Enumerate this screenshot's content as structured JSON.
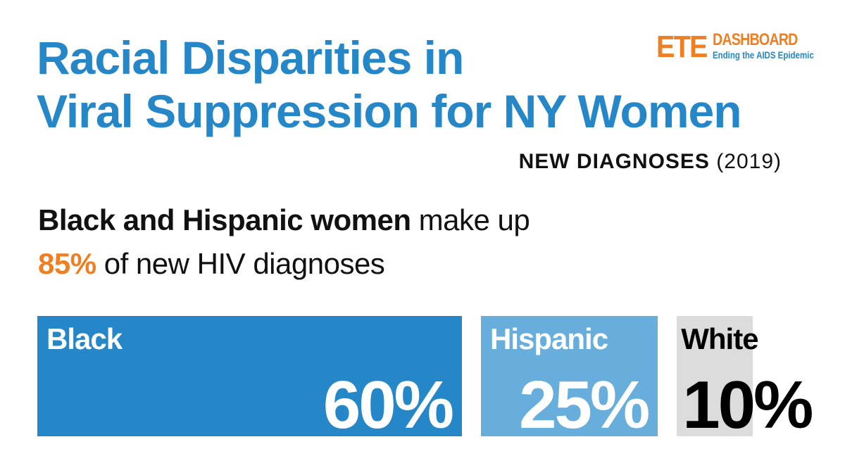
{
  "header": {
    "title_line1": "Racial Disparities in",
    "title_line2": "Viral Suppression for NY Women",
    "subtitle_main": "NEW DIAGNOSES",
    "subtitle_year": "(2019)"
  },
  "logo": {
    "ete": "ETE",
    "dashboard": "DASHBOARD",
    "tagline": "Ending the AIDS Epidemic"
  },
  "headline": {
    "strong": "Black and Hispanic women",
    "rest1": " make up",
    "accent": "85%",
    "rest2": " of new HIV diagnoses"
  },
  "colors": {
    "title_blue": "#2586c8",
    "accent_orange": "#ef7f22",
    "black_bar": "#2586c8",
    "hispanic_bar": "#67aedc",
    "white_bar": "#dcdcdc"
  },
  "chart_data": {
    "type": "bar",
    "orientation": "horizontal-stacked",
    "unit": "%",
    "categories": [
      "Black",
      "Hispanic",
      "White"
    ],
    "values": [
      60,
      25,
      10
    ],
    "labels": [
      "60%",
      "25%",
      "10%"
    ],
    "colors": [
      "#2586c8",
      "#67aedc",
      "#dcdcdc"
    ],
    "label_colors": [
      "#ffffff",
      "#ffffff",
      "#000000"
    ],
    "title": "",
    "xlabel": "",
    "ylabel": "",
    "grid": false,
    "legend": "none"
  }
}
